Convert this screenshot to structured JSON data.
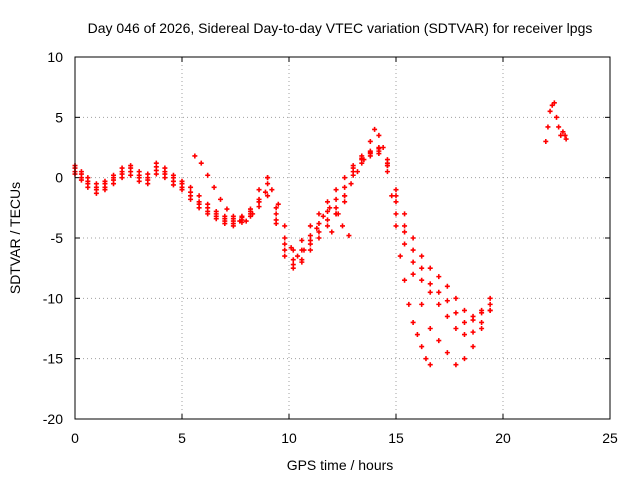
{
  "chart_data": {
    "type": "scatter",
    "title": "Day 046 of 2026, Sidereal Day-to-day VTEC variation (SDTVAR) for receiver lpgs",
    "xlabel": "GPS time / hours",
    "ylabel": "SDTVAR / TECUs",
    "xlim": [
      0,
      25
    ],
    "ylim": [
      -20,
      10
    ],
    "xticks": [
      0,
      5,
      10,
      15,
      20,
      25
    ],
    "yticks": [
      -20,
      -15,
      -10,
      -5,
      0,
      5,
      10
    ],
    "grid": true,
    "marker": "plus",
    "color": "#ff0000",
    "series": [
      {
        "name": "trace-1",
        "x": [
          0.0,
          0.3,
          0.6,
          1.0,
          1.4,
          1.8,
          2.2,
          2.6,
          3.0,
          3.4,
          3.8,
          4.2,
          4.6,
          5.0,
          5.4,
          5.8,
          6.2,
          6.6,
          7.0,
          7.4,
          7.8,
          8.2,
          8.6,
          9.0,
          9.4,
          9.8,
          10.2,
          10.6,
          11.0,
          11.4,
          11.8,
          12.2,
          12.6,
          13.0,
          13.4,
          13.8,
          14.2,
          14.6,
          15.0,
          15.4,
          15.8,
          16.2,
          16.6,
          17.0,
          17.4,
          17.8,
          18.2,
          18.6,
          19.0,
          19.4
        ],
        "y": [
          1.0,
          0.5,
          0.0,
          -0.5,
          -0.3,
          0.2,
          0.8,
          1.0,
          0.5,
          0.3,
          1.2,
          0.8,
          0.2,
          -0.3,
          -0.8,
          -1.5,
          -2.2,
          -2.8,
          -3.2,
          -3.4,
          -3.2,
          -2.8,
          -2.0,
          -1.5,
          -3.5,
          -5.5,
          -6.0,
          -5.2,
          -4.0,
          -3.0,
          -2.0,
          -1.0,
          0.0,
          1.0,
          1.8,
          2.2,
          2.5,
          1.5,
          -1.0,
          -3.0,
          -5.0,
          -6.5,
          -7.5,
          -8.2,
          -9.0,
          -10.0,
          -11.0,
          -11.5,
          -11.0,
          -10.0
        ]
      },
      {
        "name": "trace-2",
        "x": [
          0.0,
          0.3,
          0.6,
          1.0,
          1.4,
          1.8,
          2.2,
          2.6,
          3.0,
          3.4,
          3.8,
          4.2,
          4.6,
          5.0,
          5.4,
          5.8,
          6.2,
          6.6,
          7.0,
          7.4,
          7.8,
          8.2,
          8.6,
          9.0,
          9.4,
          9.8,
          10.2,
          10.6,
          11.0,
          11.4,
          11.8,
          12.2,
          12.6,
          13.0,
          13.4,
          13.8,
          14.2,
          14.6,
          15.0,
          15.4,
          15.8,
          16.2,
          16.6,
          17.0,
          17.4,
          17.8,
          18.2,
          18.6,
          19.0,
          19.4
        ],
        "y": [
          0.5,
          0.0,
          -0.5,
          -1.0,
          -0.8,
          -0.2,
          0.3,
          0.5,
          0.0,
          -0.2,
          0.6,
          0.3,
          -0.3,
          -0.8,
          -1.5,
          -2.2,
          -2.8,
          -3.2,
          -3.6,
          -3.8,
          -3.5,
          -3.0,
          -1.0,
          0.0,
          -3.0,
          -6.5,
          -7.2,
          -6.8,
          -5.5,
          -4.5,
          -3.5,
          -2.5,
          -1.5,
          0.5,
          1.5,
          2.0,
          2.2,
          1.0,
          -2.0,
          -4.5,
          -7.0,
          -8.5,
          -9.5,
          -10.5,
          -11.5,
          -12.5,
          -13.0,
          -12.8,
          -12.0,
          -11.0
        ]
      },
      {
        "name": "trace-3",
        "x": [
          0.0,
          0.3,
          0.6,
          1.0,
          1.4,
          1.8,
          2.2,
          2.6,
          3.0,
          3.4,
          3.8,
          4.2,
          4.6,
          5.0,
          5.4,
          5.8,
          6.2,
          6.6,
          7.0,
          7.4,
          7.8,
          8.2,
          8.6,
          9.0,
          9.4,
          9.8,
          10.2,
          10.6,
          11.0,
          11.4,
          11.8,
          12.2,
          12.6,
          13.0,
          13.4,
          13.8,
          14.2,
          14.6,
          15.0,
          15.4,
          15.8,
          16.2,
          16.6,
          17.0,
          17.4,
          17.8,
          18.2,
          18.6,
          19.0,
          19.4
        ],
        "y": [
          0.8,
          0.3,
          -0.3,
          -0.8,
          -0.5,
          0.0,
          0.5,
          0.8,
          0.2,
          0.0,
          0.9,
          0.5,
          0.0,
          -0.5,
          -1.2,
          -2.0,
          -2.5,
          -3.0,
          -3.4,
          -3.6,
          -3.3,
          -2.6,
          -1.8,
          -0.5,
          -2.5,
          -5.0,
          -6.8,
          -6.0,
          -4.8,
          -3.8,
          -2.8,
          -1.8,
          -0.8,
          0.8,
          1.6,
          2.1,
          2.4,
          1.2,
          -1.5,
          -4.0,
          -6.0,
          -7.5,
          -8.8,
          -9.5,
          -10.2,
          -11.2,
          -12.0,
          -11.8,
          -11.2,
          -10.5
        ]
      },
      {
        "name": "trace-4",
        "x": [
          0.0,
          0.3,
          0.6,
          1.0,
          1.4,
          1.8,
          2.2,
          2.6,
          3.0,
          3.4,
          3.8,
          4.2,
          4.6,
          5.0,
          5.4,
          5.8,
          6.2,
          6.6,
          7.0,
          7.4,
          7.8,
          8.2,
          8.6,
          9.0,
          9.4,
          9.8,
          10.2,
          10.6,
          11.0,
          11.4,
          11.8,
          12.2,
          12.6,
          13.0,
          13.4,
          13.8,
          14.2,
          14.6,
          15.0,
          15.4,
          15.8,
          16.2,
          16.6,
          17.0,
          17.4,
          17.8,
          18.2,
          18.6,
          19.0,
          19.4
        ],
        "y": [
          0.3,
          -0.2,
          -0.8,
          -1.3,
          -1.0,
          -0.5,
          0.0,
          0.2,
          -0.3,
          -0.5,
          0.3,
          0.0,
          -0.6,
          -1.0,
          -1.8,
          -2.5,
          -3.0,
          -3.4,
          -3.8,
          -4.0,
          -3.7,
          -3.2,
          -2.4,
          0.0,
          -3.8,
          -6.0,
          -7.5,
          -7.0,
          -6.0,
          -5.0,
          -4.0,
          -3.0,
          -2.0,
          0.2,
          1.2,
          1.8,
          2.0,
          0.5,
          -3.0,
          -5.5,
          -8.0,
          -10.5,
          -12.5,
          -13.5,
          -14.5,
          -15.5,
          -15.0,
          -14.0,
          -12.5,
          -11.0
        ]
      },
      {
        "name": "trace-5",
        "x": [
          12.0,
          12.3,
          12.6,
          12.9,
          13.2,
          13.5,
          13.8,
          14.0,
          14.2,
          14.4,
          14.6,
          14.8,
          15.0,
          15.2,
          15.4,
          15.6,
          15.8,
          16.0,
          16.2,
          16.4,
          16.6
        ],
        "y": [
          -4.5,
          -3.0,
          -1.5,
          -0.5,
          0.5,
          1.5,
          3.0,
          4.0,
          3.5,
          2.5,
          1.0,
          -1.5,
          -4.0,
          -6.5,
          -8.5,
          -10.5,
          -12.0,
          -13.0,
          -14.0,
          -15.0,
          -15.5
        ]
      },
      {
        "name": "trace-6",
        "x": [
          5.6,
          5.9,
          6.2,
          6.5,
          6.8,
          7.1,
          7.4,
          7.7,
          8.0,
          8.3,
          8.6,
          8.9,
          9.2,
          9.5,
          9.8,
          10.1,
          10.4,
          10.7,
          11.0,
          11.3,
          11.6,
          11.9,
          12.2,
          12.5,
          12.8
        ],
        "y": [
          1.8,
          1.2,
          0.2,
          -0.8,
          -1.8,
          -2.6,
          -3.2,
          -3.6,
          -3.6,
          -3.0,
          -2.0,
          -1.2,
          -1.0,
          -2.2,
          -4.0,
          -5.8,
          -6.5,
          -6.0,
          -5.2,
          -4.2,
          -3.2,
          -2.5,
          -3.0,
          -4.0,
          -4.8
        ]
      },
      {
        "name": "trace-7",
        "x": [
          22.0,
          22.1,
          22.2,
          22.3,
          22.4,
          22.5,
          22.6,
          22.7,
          22.8,
          22.9,
          22.95
        ],
        "y": [
          3.0,
          4.2,
          5.5,
          6.0,
          6.2,
          5.0,
          4.2,
          3.5,
          3.8,
          3.5,
          3.2
        ]
      }
    ]
  }
}
